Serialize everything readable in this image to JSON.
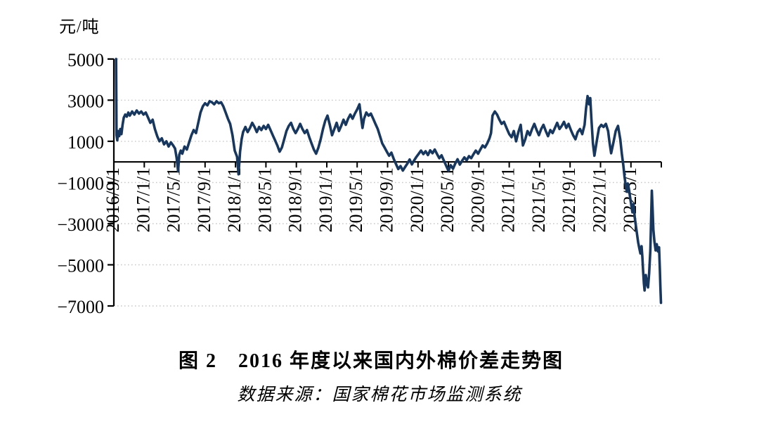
{
  "figure": {
    "title": "图 2　2016 年度以来国内外棉价差走势图",
    "source": "数据来源：国家棉花市场监测系统"
  },
  "chart_data": {
    "type": "line",
    "title": "图 2　2016 年度以来国内外棉价差走势图",
    "source": "数据来源：国家棉花市场监测系统",
    "series_name": "国内外棉价差",
    "xlabel": "",
    "ylabel": "元/吨",
    "line_color": "#17375E",
    "grid_color": "#C9C9C9",
    "axis_color": "#000000",
    "grid_style": "dotted",
    "legend": "none",
    "ylim": [
      -7000,
      5000
    ],
    "y_ticks": [
      5000,
      3000,
      1000,
      -1000,
      -3000,
      -5000,
      -7000
    ],
    "y_tick_labels": [
      "5000",
      "3000",
      "1000",
      "−1000",
      "−3000",
      "−5000",
      "−7000"
    ],
    "x_unit": "months since 2016/9/1",
    "xlim": [
      0,
      72
    ],
    "x_tick_positions": [
      0,
      4,
      8,
      12,
      16,
      20,
      24,
      28,
      32,
      36,
      40,
      44,
      48,
      52,
      56,
      60,
      64,
      68
    ],
    "x_tick_labels": [
      "2016/9/1",
      "2017/1/1",
      "2017/5/1",
      "2017/9/1",
      "2018/1/1",
      "2018/5/1",
      "2018/9/1",
      "2019/1/1",
      "2019/5/1",
      "2019/9/1",
      "2020/1/1",
      "2020/5/1",
      "2020/9/1",
      "2021/1/1",
      "2021/5/1",
      "2021/9/1",
      "2022/1/1",
      "2022/5/1"
    ],
    "points": [
      [
        0.3,
        5000
      ],
      [
        0.35,
        1300
      ],
      [
        0.45,
        1050
      ],
      [
        0.55,
        1500
      ],
      [
        0.7,
        1250
      ],
      [
        0.85,
        1600
      ],
      [
        1.0,
        1350
      ],
      [
        1.15,
        1800
      ],
      [
        1.3,
        2150
      ],
      [
        1.5,
        2300
      ],
      [
        1.7,
        2200
      ],
      [
        1.9,
        2400
      ],
      [
        2.1,
        2250
      ],
      [
        2.4,
        2450
      ],
      [
        2.7,
        2300
      ],
      [
        3.0,
        2500
      ],
      [
        3.3,
        2350
      ],
      [
        3.6,
        2450
      ],
      [
        3.9,
        2300
      ],
      [
        4.2,
        2400
      ],
      [
        4.5,
        2150
      ],
      [
        4.8,
        1900
      ],
      [
        5.1,
        2050
      ],
      [
        5.4,
        1600
      ],
      [
        5.7,
        1250
      ],
      [
        6.0,
        1000
      ],
      [
        6.3,
        1150
      ],
      [
        6.6,
        850
      ],
      [
        6.9,
        1000
      ],
      [
        7.2,
        750
      ],
      [
        7.5,
        950
      ],
      [
        7.8,
        800
      ],
      [
        8.05,
        650
      ],
      [
        8.25,
        200
      ],
      [
        8.45,
        -450
      ],
      [
        8.6,
        350
      ],
      [
        8.8,
        550
      ],
      [
        9.0,
        400
      ],
      [
        9.3,
        750
      ],
      [
        9.6,
        600
      ],
      [
        9.9,
        950
      ],
      [
        10.2,
        1300
      ],
      [
        10.5,
        1550
      ],
      [
        10.8,
        1400
      ],
      [
        11.1,
        1900
      ],
      [
        11.4,
        2400
      ],
      [
        11.7,
        2700
      ],
      [
        12.0,
        2850
      ],
      [
        12.3,
        2750
      ],
      [
        12.6,
        2950
      ],
      [
        12.9,
        2900
      ],
      [
        13.2,
        2800
      ],
      [
        13.5,
        2950
      ],
      [
        13.8,
        2850
      ],
      [
        14.1,
        2900
      ],
      [
        14.4,
        2700
      ],
      [
        14.7,
        2400
      ],
      [
        15.0,
        2100
      ],
      [
        15.3,
        1850
      ],
      [
        15.6,
        1300
      ],
      [
        15.9,
        550
      ],
      [
        16.2,
        250
      ],
      [
        16.4,
        -600
      ],
      [
        16.6,
        500
      ],
      [
        16.8,
        1100
      ],
      [
        17.0,
        1450
      ],
      [
        17.3,
        1700
      ],
      [
        17.6,
        1450
      ],
      [
        17.9,
        1650
      ],
      [
        18.2,
        1900
      ],
      [
        18.5,
        1700
      ],
      [
        18.8,
        1450
      ],
      [
        19.1,
        1700
      ],
      [
        19.4,
        1550
      ],
      [
        19.7,
        1750
      ],
      [
        20.0,
        1600
      ],
      [
        20.3,
        1800
      ],
      [
        20.6,
        1550
      ],
      [
        20.9,
        1300
      ],
      [
        21.2,
        1050
      ],
      [
        21.5,
        800
      ],
      [
        21.8,
        500
      ],
      [
        22.1,
        700
      ],
      [
        22.4,
        1100
      ],
      [
        22.7,
        1500
      ],
      [
        23.0,
        1750
      ],
      [
        23.3,
        1900
      ],
      [
        23.6,
        1600
      ],
      [
        23.9,
        1400
      ],
      [
        24.2,
        1600
      ],
      [
        24.5,
        1850
      ],
      [
        24.8,
        1600
      ],
      [
        25.1,
        1400
      ],
      [
        25.4,
        1550
      ],
      [
        25.7,
        1200
      ],
      [
        26.0,
        900
      ],
      [
        26.3,
        600
      ],
      [
        26.6,
        400
      ],
      [
        26.9,
        700
      ],
      [
        27.2,
        1100
      ],
      [
        27.5,
        1600
      ],
      [
        27.8,
        2000
      ],
      [
        28.1,
        2250
      ],
      [
        28.4,
        1800
      ],
      [
        28.7,
        1300
      ],
      [
        29.0,
        1600
      ],
      [
        29.3,
        1900
      ],
      [
        29.6,
        1500
      ],
      [
        29.9,
        1750
      ],
      [
        30.2,
        2050
      ],
      [
        30.5,
        1800
      ],
      [
        30.8,
        2100
      ],
      [
        31.1,
        2300
      ],
      [
        31.4,
        2100
      ],
      [
        31.7,
        2350
      ],
      [
        32.0,
        2550
      ],
      [
        32.3,
        2800
      ],
      [
        32.55,
        2050
      ],
      [
        32.7,
        1650
      ],
      [
        32.9,
        2100
      ],
      [
        33.2,
        2400
      ],
      [
        33.5,
        2250
      ],
      [
        33.8,
        2350
      ],
      [
        34.1,
        2100
      ],
      [
        34.4,
        1850
      ],
      [
        34.7,
        1600
      ],
      [
        35.0,
        1250
      ],
      [
        35.3,
        900
      ],
      [
        35.6,
        700
      ],
      [
        35.9,
        500
      ],
      [
        36.2,
        300
      ],
      [
        36.5,
        450
      ],
      [
        36.8,
        150
      ],
      [
        37.1,
        -100
      ],
      [
        37.4,
        -350
      ],
      [
        37.7,
        -200
      ],
      [
        38.0,
        -420
      ],
      [
        38.3,
        -250
      ],
      [
        38.6,
        -80
      ],
      [
        38.9,
        120
      ],
      [
        39.2,
        -120
      ],
      [
        39.5,
        80
      ],
      [
        39.8,
        250
      ],
      [
        40.1,
        400
      ],
      [
        40.4,
        550
      ],
      [
        40.7,
        380
      ],
      [
        41.0,
        520
      ],
      [
        41.3,
        330
      ],
      [
        41.6,
        560
      ],
      [
        41.9,
        420
      ],
      [
        42.2,
        600
      ],
      [
        42.5,
        380
      ],
      [
        42.8,
        180
      ],
      [
        43.1,
        320
      ],
      [
        43.4,
        60
      ],
      [
        43.7,
        -180
      ],
      [
        44.0,
        -430
      ],
      [
        44.3,
        -160
      ],
      [
        44.6,
        -330
      ],
      [
        44.9,
        -80
      ],
      [
        45.2,
        130
      ],
      [
        45.5,
        -130
      ],
      [
        45.8,
        60
      ],
      [
        46.1,
        220
      ],
      [
        46.4,
        80
      ],
      [
        46.7,
        280
      ],
      [
        47.0,
        180
      ],
      [
        47.3,
        380
      ],
      [
        47.6,
        550
      ],
      [
        47.9,
        400
      ],
      [
        48.2,
        600
      ],
      [
        48.5,
        800
      ],
      [
        48.8,
        700
      ],
      [
        49.1,
        900
      ],
      [
        49.4,
        1150
      ],
      [
        49.6,
        1400
      ],
      [
        49.8,
        2250
      ],
      [
        50.1,
        2450
      ],
      [
        50.4,
        2300
      ],
      [
        50.7,
        2050
      ],
      [
        51.0,
        1850
      ],
      [
        51.3,
        1950
      ],
      [
        51.7,
        1600
      ],
      [
        52.0,
        1350
      ],
      [
        52.3,
        1200
      ],
      [
        52.6,
        1500
      ],
      [
        52.9,
        1000
      ],
      [
        53.2,
        1450
      ],
      [
        53.5,
        1800
      ],
      [
        53.8,
        800
      ],
      [
        54.1,
        1100
      ],
      [
        54.4,
        1500
      ],
      [
        54.7,
        1300
      ],
      [
        55.0,
        1600
      ],
      [
        55.3,
        1850
      ],
      [
        55.6,
        1550
      ],
      [
        55.9,
        1300
      ],
      [
        56.2,
        1600
      ],
      [
        56.5,
        1800
      ],
      [
        56.8,
        1500
      ],
      [
        57.1,
        1250
      ],
      [
        57.4,
        1550
      ],
      [
        57.7,
        1400
      ],
      [
        58.0,
        1650
      ],
      [
        58.3,
        1900
      ],
      [
        58.6,
        1600
      ],
      [
        58.9,
        1750
      ],
      [
        59.2,
        1950
      ],
      [
        59.5,
        1650
      ],
      [
        59.8,
        1850
      ],
      [
        60.1,
        1550
      ],
      [
        60.4,
        1300
      ],
      [
        60.7,
        1100
      ],
      [
        61.0,
        1450
      ],
      [
        61.3,
        1600
      ],
      [
        61.6,
        1350
      ],
      [
        61.9,
        1800
      ],
      [
        62.1,
        2600
      ],
      [
        62.3,
        3200
      ],
      [
        62.5,
        2800
      ],
      [
        62.65,
        3100
      ],
      [
        62.8,
        2100
      ],
      [
        63.0,
        900
      ],
      [
        63.2,
        300
      ],
      [
        63.5,
        1000
      ],
      [
        63.8,
        1650
      ],
      [
        64.1,
        1800
      ],
      [
        64.4,
        1700
      ],
      [
        64.7,
        1850
      ],
      [
        65.0,
        1500
      ],
      [
        65.2,
        900
      ],
      [
        65.4,
        420
      ],
      [
        65.7,
        950
      ],
      [
        66.0,
        1500
      ],
      [
        66.3,
        1750
      ],
      [
        66.6,
        1100
      ],
      [
        66.8,
        400
      ],
      [
        67.0,
        -150
      ],
      [
        67.15,
        -700
      ],
      [
        67.3,
        -1100
      ],
      [
        67.45,
        -1450
      ],
      [
        67.6,
        -1050
      ],
      [
        67.75,
        -1350
      ],
      [
        67.9,
        -1750
      ],
      [
        68.05,
        -2100
      ],
      [
        68.2,
        -2450
      ],
      [
        68.35,
        -2050
      ],
      [
        68.5,
        -2700
      ],
      [
        68.65,
        -3100
      ],
      [
        68.8,
        -3500
      ],
      [
        68.95,
        -3900
      ],
      [
        69.1,
        -4200
      ],
      [
        69.25,
        -4450
      ],
      [
        69.4,
        -4100
      ],
      [
        69.5,
        -4600
      ],
      [
        69.6,
        -5300
      ],
      [
        69.7,
        -5900
      ],
      [
        69.8,
        -6250
      ],
      [
        69.95,
        -5500
      ],
      [
        70.1,
        -5900
      ],
      [
        70.25,
        -6100
      ],
      [
        70.4,
        -5400
      ],
      [
        70.55,
        -4300
      ],
      [
        70.65,
        -2900
      ],
      [
        70.75,
        -1400
      ],
      [
        70.85,
        -2300
      ],
      [
        70.95,
        -3300
      ],
      [
        71.1,
        -3900
      ],
      [
        71.25,
        -4300
      ],
      [
        71.4,
        -4000
      ],
      [
        71.55,
        -4350
      ],
      [
        71.7,
        -4150
      ],
      [
        71.8,
        -5200
      ],
      [
        71.88,
        -6100
      ],
      [
        71.95,
        -6850
      ]
    ]
  }
}
